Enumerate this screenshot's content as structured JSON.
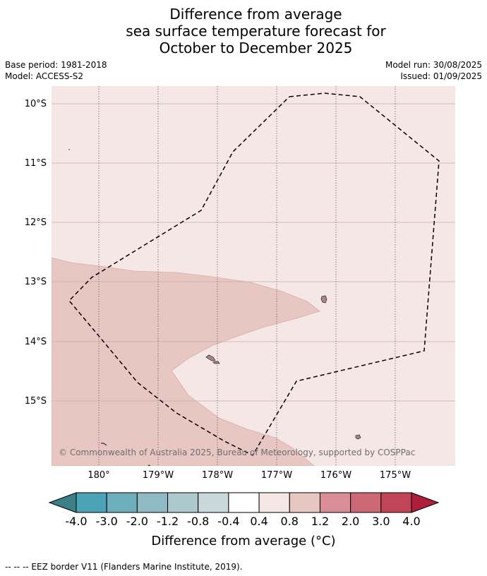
{
  "title": {
    "line1": "Difference from average",
    "line2": "sea surface temperature forecast for",
    "line3": "October to December 2025"
  },
  "meta": {
    "base_period": "Base period: 1981-2018",
    "model": "Model: ACCESS-S2",
    "model_run": "Model run: 30/08/2025",
    "issued": "Issued: 01/09/2025"
  },
  "map": {
    "lat_labels": [
      "10°S",
      "11°S",
      "12°S",
      "13°S",
      "14°S",
      "15°S"
    ],
    "lon_labels": [
      "180°",
      "179°W",
      "178°W",
      "177°W",
      "176°W",
      "175°W"
    ],
    "copyright": "© Commonwealth of Australia 2025, Bureau of Meteorology, supported by COSPPac",
    "background_anomaly_range": "0.4 to 0.8",
    "shaded_anomaly_range": "0.8 to 1.2",
    "colors": {
      "anomaly_0_4_to_0_8": "#f4e7e6",
      "anomaly_0_8_to_1_2": "#e8c6c2",
      "land": "#b08585",
      "grid": "#c8aaaa"
    }
  },
  "colorbar": {
    "ticks": [
      "-4.0",
      "-3.0",
      "-2.0",
      "-1.2",
      "-0.8",
      "-0.4",
      "0.4",
      "0.8",
      "1.2",
      "2.0",
      "3.0",
      "4.0"
    ],
    "colors": [
      "#3d7f87",
      "#4aa3b6",
      "#6caebb",
      "#8fbac4",
      "#acc8cd",
      "#c9d8da",
      "#ffffff",
      "#f4e7e6",
      "#e8c6c2",
      "#d98e97",
      "#cb6873",
      "#bf4557",
      "#ae1e3a"
    ],
    "label": "Difference from average (°C)"
  },
  "footer": "--  --  -- EEZ border V11 (Flanders Marine Institute, 2019)."
}
